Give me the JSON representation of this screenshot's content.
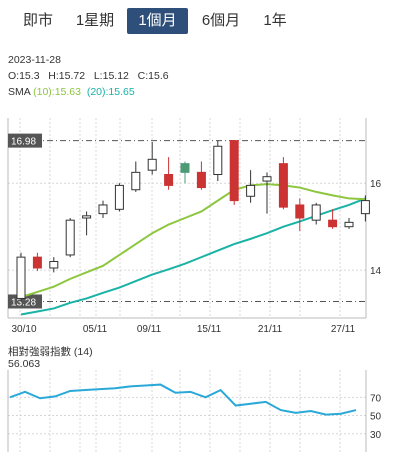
{
  "tabs": [
    {
      "label": "即市",
      "active": false
    },
    {
      "label": "1星期",
      "active": false
    },
    {
      "label": "1個月",
      "active": true
    },
    {
      "label": "6個月",
      "active": false
    },
    {
      "label": "1年",
      "active": false
    }
  ],
  "header": {
    "date": "2023-11-28",
    "open_label": "O:",
    "open": "15.3",
    "high_label": "H:",
    "high": "15.72",
    "low_label": "L:",
    "low": "15.12",
    "close_label": "C:",
    "close": "15.6",
    "sma_label": "SMA",
    "sma10_text": "(10):15.63",
    "sma20_text": "(20):15.65"
  },
  "colors": {
    "up": "#ffffff",
    "up_border": "#333333",
    "up_highlight": "#4d9a75",
    "down": "#cc3333",
    "sma10": "#8dc63f",
    "sma20": "#19b3a6",
    "rsi": "#2aa9d8",
    "grid": "#d7d7d7",
    "label_box": "#555555"
  },
  "chart_data": [
    {
      "type": "candlestick",
      "title": "",
      "x_tick_labels": [
        "30/10",
        "05/11",
        "09/11",
        "15/11",
        "21/11",
        "27/11"
      ],
      "y_ticks": [
        14,
        16
      ],
      "ylim": [
        12.9,
        17.5
      ],
      "max_label": "16.98",
      "min_label": "13.28",
      "candles": [
        {
          "o": 13.35,
          "h": 14.4,
          "l": 13.28,
          "c": 14.3,
          "color": "up"
        },
        {
          "o": 14.3,
          "h": 14.4,
          "l": 13.98,
          "c": 14.05,
          "color": "down"
        },
        {
          "o": 14.05,
          "h": 14.3,
          "l": 13.95,
          "c": 14.2,
          "color": "up"
        },
        {
          "o": 14.35,
          "h": 15.2,
          "l": 14.3,
          "c": 15.15,
          "color": "up"
        },
        {
          "o": 15.2,
          "h": 15.35,
          "l": 14.8,
          "c": 15.25,
          "color": "up"
        },
        {
          "o": 15.3,
          "h": 15.6,
          "l": 15.2,
          "c": 15.5,
          "color": "up"
        },
        {
          "o": 15.4,
          "h": 16.0,
          "l": 15.35,
          "c": 15.95,
          "color": "up"
        },
        {
          "o": 15.85,
          "h": 16.5,
          "l": 15.8,
          "c": 16.25,
          "color": "up"
        },
        {
          "o": 16.3,
          "h": 16.95,
          "l": 16.2,
          "c": 16.55,
          "color": "up"
        },
        {
          "o": 16.2,
          "h": 16.6,
          "l": 15.85,
          "c": 15.95,
          "color": "down"
        },
        {
          "o": 16.25,
          "h": 16.5,
          "l": 16.0,
          "c": 16.45,
          "color": "up_highlight"
        },
        {
          "o": 16.25,
          "h": 16.5,
          "l": 15.85,
          "c": 15.9,
          "color": "down"
        },
        {
          "o": 16.2,
          "h": 16.98,
          "l": 16.05,
          "c": 16.85,
          "color": "up"
        },
        {
          "o": 16.98,
          "h": 16.98,
          "l": 15.5,
          "c": 15.6,
          "color": "down"
        },
        {
          "o": 15.7,
          "h": 16.3,
          "l": 15.55,
          "c": 15.95,
          "color": "up"
        },
        {
          "o": 16.05,
          "h": 16.25,
          "l": 15.3,
          "c": 16.15,
          "color": "up"
        },
        {
          "o": 16.45,
          "h": 16.6,
          "l": 15.4,
          "c": 15.45,
          "color": "down"
        },
        {
          "o": 15.5,
          "h": 15.65,
          "l": 14.9,
          "c": 15.2,
          "color": "down"
        },
        {
          "o": 15.15,
          "h": 15.55,
          "l": 15.05,
          "c": 15.5,
          "color": "up"
        },
        {
          "o": 15.15,
          "h": 15.4,
          "l": 14.95,
          "c": 15.0,
          "color": "down"
        },
        {
          "o": 15.0,
          "h": 15.2,
          "l": 14.95,
          "c": 15.1,
          "color": "up"
        },
        {
          "o": 15.3,
          "h": 15.72,
          "l": 15.12,
          "c": 15.6,
          "color": "up"
        }
      ],
      "sma10": [
        13.38,
        13.5,
        13.62,
        13.8,
        13.95,
        14.1,
        14.35,
        14.6,
        14.85,
        15.05,
        15.2,
        15.35,
        15.6,
        15.85,
        15.95,
        15.98,
        15.95,
        15.9,
        15.8,
        15.72,
        15.65,
        15.63
      ],
      "sma20": [
        12.98,
        13.05,
        13.12,
        13.25,
        13.35,
        13.48,
        13.6,
        13.75,
        13.9,
        14.02,
        14.15,
        14.3,
        14.45,
        14.6,
        14.72,
        14.85,
        15.0,
        15.12,
        15.25,
        15.38,
        15.5,
        15.65
      ]
    },
    {
      "type": "line",
      "title": "相對強弱指數",
      "title_suffix": "(14)",
      "current_value": "56.063",
      "y_ticks": [
        70,
        50,
        30
      ],
      "ylim": [
        10,
        100
      ],
      "series": [
        {
          "values": [
            70,
            76,
            69,
            71,
            77,
            78,
            79,
            80,
            82,
            83,
            84,
            75,
            76,
            70,
            78,
            61,
            63,
            65,
            56,
            53,
            55,
            51,
            52,
            56
          ]
        }
      ]
    }
  ]
}
